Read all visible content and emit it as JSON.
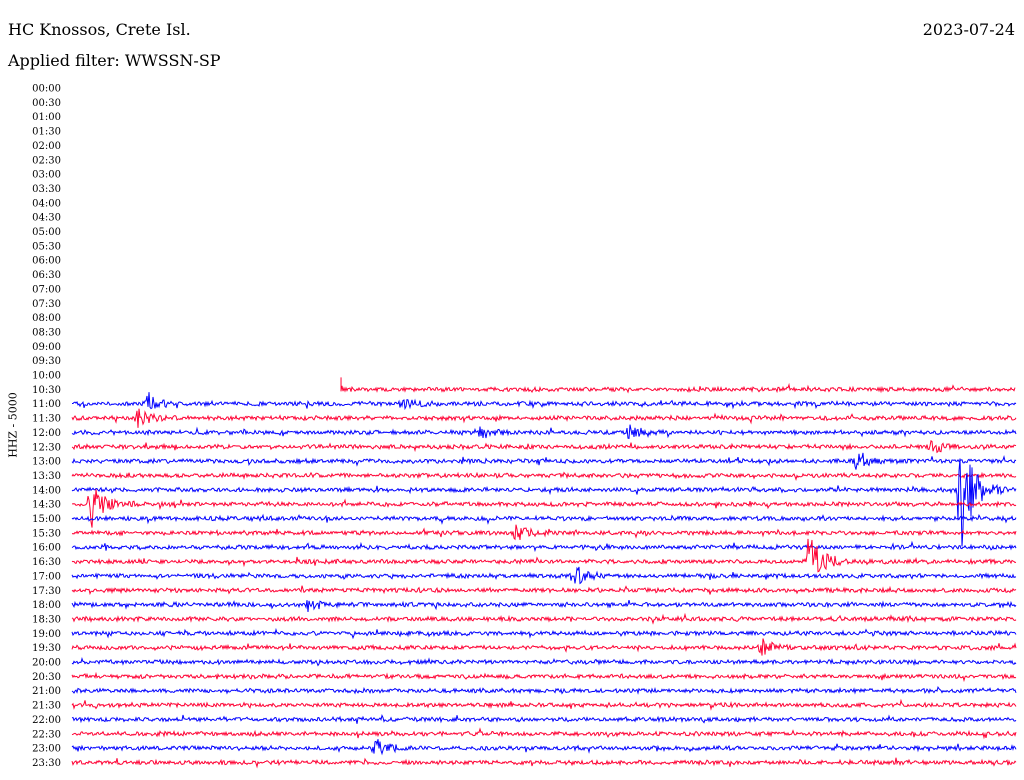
{
  "header": {
    "station": "HC Knossos, Crete Isl.",
    "date": "2023-07-24",
    "filter": "Applied filter: WWSSN-SP"
  },
  "chart_data": {
    "type": "line",
    "title": "HC Knossos, Crete Isl.",
    "subtitle": "Applied filter: WWSSN-SP",
    "ylabel": "HHZ - 5000",
    "xlabel": "",
    "grid": false,
    "colors": [
      "#0000ff",
      "#ff0033"
    ],
    "row_labels": [
      "00:00",
      "00:30",
      "01:00",
      "01:30",
      "02:00",
      "02:30",
      "03:00",
      "03:30",
      "04:00",
      "04:30",
      "05:00",
      "05:30",
      "06:00",
      "06:30",
      "07:00",
      "07:30",
      "08:00",
      "08:30",
      "09:00",
      "09:30",
      "10:00",
      "10:30",
      "11:00",
      "11:30",
      "12:00",
      "12:30",
      "13:00",
      "13:30",
      "14:00",
      "14:30",
      "15:00",
      "15:30",
      "16:00",
      "16:30",
      "17:00",
      "17:30",
      "18:00",
      "18:30",
      "19:00",
      "19:30",
      "20:00",
      "20:30",
      "21:00",
      "21:30",
      "22:00",
      "22:30",
      "23:00",
      "23:30"
    ],
    "traces_begin": "10:30",
    "events": [
      {
        "row": "11:00",
        "pos": 0.08,
        "amp": 10
      },
      {
        "row": "11:00",
        "pos": 0.35,
        "amp": 8
      },
      {
        "row": "11:30",
        "pos": 0.07,
        "amp": 9
      },
      {
        "row": "12:00",
        "pos": 0.43,
        "amp": 7
      },
      {
        "row": "12:00",
        "pos": 0.59,
        "amp": 8
      },
      {
        "row": "12:30",
        "pos": 0.91,
        "amp": 7
      },
      {
        "row": "13:00",
        "pos": 0.83,
        "amp": 7
      },
      {
        "row": "14:00",
        "pos": 0.94,
        "amp": 70
      },
      {
        "row": "14:30",
        "pos": 0.02,
        "amp": 26
      },
      {
        "row": "15:30",
        "pos": 0.47,
        "amp": 8
      },
      {
        "row": "16:30",
        "pos": 0.78,
        "amp": 30
      },
      {
        "row": "17:00",
        "pos": 0.53,
        "amp": 14
      },
      {
        "row": "18:00",
        "pos": 0.25,
        "amp": 6
      },
      {
        "row": "19:30",
        "pos": 0.73,
        "amp": 9
      },
      {
        "row": "23:00",
        "pos": 0.32,
        "amp": 10
      }
    ]
  }
}
